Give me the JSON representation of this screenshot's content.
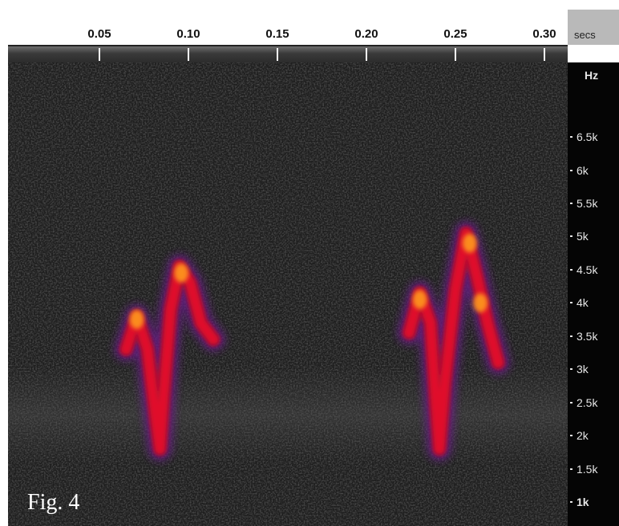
{
  "fig_label": "Fig. 4",
  "chart_data": {
    "type": "heatmap",
    "subtype": "spectrogram",
    "x_axis": {
      "unit_label": "secs",
      "ticks": [
        {
          "value": 0.05,
          "label": "0.05"
        },
        {
          "value": 0.1,
          "label": "0.10"
        },
        {
          "value": 0.15,
          "label": "0.15"
        },
        {
          "value": 0.2,
          "label": "0.20"
        },
        {
          "value": 0.25,
          "label": "0.25"
        },
        {
          "value": 0.3,
          "label": "0.30"
        }
      ],
      "range": [
        0.0,
        0.315
      ]
    },
    "y_axis": {
      "unit_label": "Hz",
      "ticks": [
        {
          "value": 6500,
          "label": "6.5k"
        },
        {
          "value": 6000,
          "label": "6k"
        },
        {
          "value": 5500,
          "label": "5.5k"
        },
        {
          "value": 5000,
          "label": "5k"
        },
        {
          "value": 4500,
          "label": "4.5k"
        },
        {
          "value": 4000,
          "label": "4k"
        },
        {
          "value": 3500,
          "label": "3.5k"
        },
        {
          "value": 3000,
          "label": "3k"
        },
        {
          "value": 2500,
          "label": "2.5k"
        },
        {
          "value": 2000,
          "label": "2k"
        },
        {
          "value": 1500,
          "label": "1.5k"
        },
        {
          "value": 1000,
          "label": "1k",
          "bold": true
        }
      ],
      "range": [
        900,
        7800
      ]
    },
    "colormap": {
      "background": "#1e1e1e",
      "low": "#6a1a8a",
      "mid": "#e0102a",
      "high": "#ff9a1a"
    },
    "calls": [
      {
        "name": "call-1",
        "points": [
          {
            "t": 0.065,
            "f": 3300
          },
          {
            "t": 0.071,
            "f": 3800
          },
          {
            "t": 0.077,
            "f": 3300
          },
          {
            "t": 0.082,
            "f": 2200
          },
          {
            "t": 0.084,
            "f": 1800
          },
          {
            "t": 0.086,
            "f": 2600
          },
          {
            "t": 0.09,
            "f": 3900
          },
          {
            "t": 0.095,
            "f": 4550
          },
          {
            "t": 0.101,
            "f": 4300
          },
          {
            "t": 0.107,
            "f": 3700
          },
          {
            "t": 0.114,
            "f": 3450
          }
        ],
        "hot_spots": [
          {
            "t": 0.071,
            "f": 3750
          },
          {
            "t": 0.096,
            "f": 4450
          }
        ]
      },
      {
        "name": "call-2",
        "points": [
          {
            "t": 0.224,
            "f": 3550
          },
          {
            "t": 0.23,
            "f": 4150
          },
          {
            "t": 0.236,
            "f": 3700
          },
          {
            "t": 0.239,
            "f": 2500
          },
          {
            "t": 0.241,
            "f": 1800
          },
          {
            "t": 0.244,
            "f": 2800
          },
          {
            "t": 0.25,
            "f": 4200
          },
          {
            "t": 0.256,
            "f": 5050
          },
          {
            "t": 0.262,
            "f": 4400
          },
          {
            "t": 0.268,
            "f": 3700
          },
          {
            "t": 0.274,
            "f": 3100
          }
        ],
        "hot_spots": [
          {
            "t": 0.23,
            "f": 4050
          },
          {
            "t": 0.258,
            "f": 4900
          },
          {
            "t": 0.264,
            "f": 4000
          }
        ]
      }
    ]
  }
}
